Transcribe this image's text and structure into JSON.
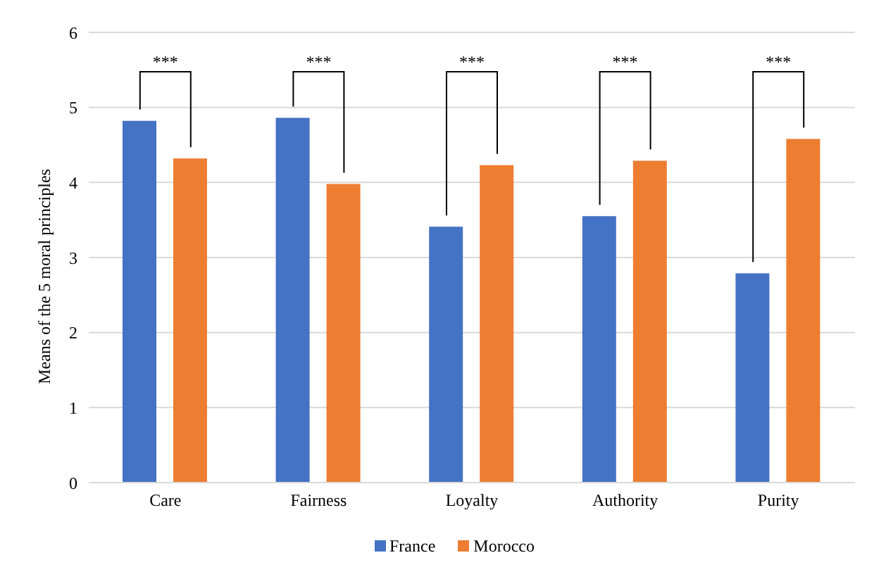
{
  "chart_data": {
    "type": "bar",
    "ylabel": "Means of the 5 moral principles",
    "categories": [
      "Care",
      "Fairness",
      "Loyalty",
      "Authority",
      "Purity"
    ],
    "series": [
      {
        "name": "France",
        "color": "#4472c4",
        "values": [
          4.82,
          4.86,
          3.41,
          3.55,
          2.79
        ]
      },
      {
        "name": "Morocco",
        "color": "#ed7d31",
        "values": [
          4.32,
          3.98,
          4.23,
          4.29,
          4.58
        ]
      }
    ],
    "ylim": [
      0,
      6
    ],
    "yticks": [
      0,
      1,
      2,
      3,
      4,
      5,
      6
    ],
    "grid": "y",
    "legend": "bottom",
    "annotations": [
      "***",
      "***",
      "***",
      "***",
      "***"
    ]
  }
}
